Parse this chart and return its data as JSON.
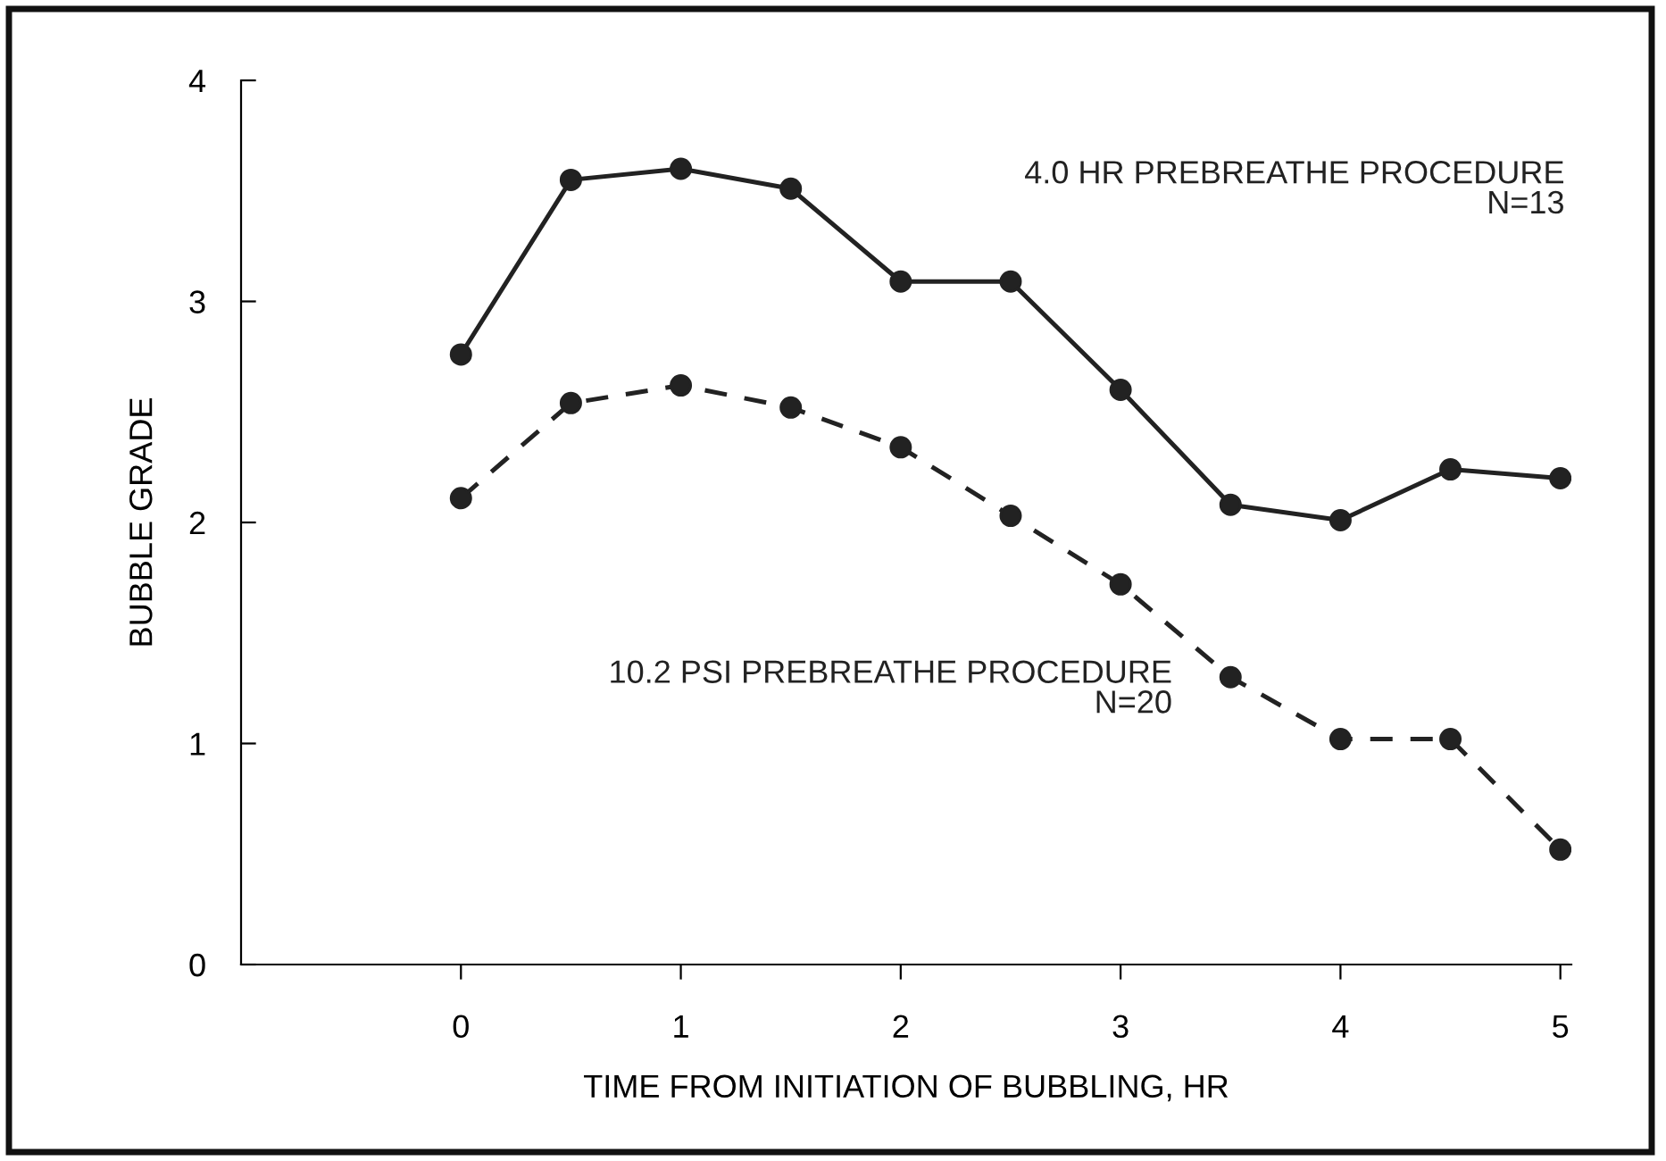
{
  "chart_data": {
    "type": "line",
    "xlabel": "TIME FROM INITIATION OF BUBBLING, HR",
    "ylabel": "BUBBLE GRADE",
    "x": [
      0,
      0.5,
      1,
      1.5,
      2,
      2.5,
      3,
      3.5,
      4,
      4.5,
      5
    ],
    "series": [
      {
        "name": "4.0 HR PREBREATHE PROCEDURE\nN=13",
        "color": "#222222",
        "line_style": "solid",
        "values": [
          2.76,
          3.55,
          3.6,
          3.51,
          3.09,
          3.09,
          2.6,
          2.08,
          2.01,
          2.24,
          2.2
        ]
      },
      {
        "name": "10.2 PSI PREBREATHE PROCEDURE\nN=20",
        "color": "#222222",
        "line_style": "dashed",
        "values": [
          2.11,
          2.54,
          2.62,
          2.52,
          2.34,
          2.03,
          1.72,
          1.3,
          1.02,
          1.02,
          0.52
        ]
      }
    ],
    "xlim": [
      -1,
      5.05
    ],
    "ylim": [
      0,
      4
    ],
    "xticks": [
      0,
      1,
      2,
      3,
      4,
      5
    ],
    "yticks": [
      0,
      1,
      2,
      3,
      4
    ],
    "marker": "circle",
    "grid": false,
    "legend": false
  }
}
